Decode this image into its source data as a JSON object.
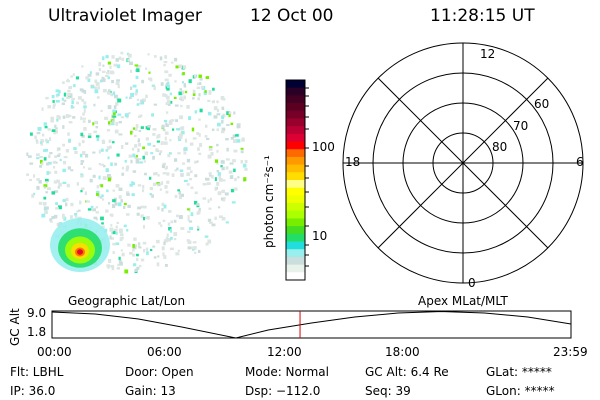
{
  "header": {
    "instrument": "Ultraviolet Imager",
    "date": "12 Oct 00",
    "time": "11:28:15 UT"
  },
  "colorbar": {
    "label": "photon cm⁻²s⁻¹",
    "ticks": [
      "100",
      "10"
    ],
    "colors": [
      "#000033",
      "#2a0026",
      "#440022",
      "#5c0022",
      "#770028",
      "#99002e",
      "#bb0033",
      "#dd0033",
      "#ff0000",
      "#ff6a00",
      "#ff9900",
      "#ffbb00",
      "#ffdd00",
      "#ffff88",
      "#ffff00",
      "#eeff00",
      "#ccff00",
      "#aaff00",
      "#77ee00",
      "#44dd22",
      "#22dd66",
      "#22dddd",
      "#99eeee",
      "#ccdddd",
      "#e8f2ea",
      "#ffffff"
    ]
  },
  "polar": {
    "mlt_labels": {
      "top": "12",
      "left": "18",
      "right": "6",
      "bottom": "0"
    },
    "lat_labels": [
      "60",
      "70",
      "80"
    ]
  },
  "timeline": {
    "left_label": "Geographic Lat/Lon",
    "right_label": "Apex MLat/MLT",
    "y_label": "GC Alt",
    "y_max": "9.0",
    "y_min": "1.8",
    "x_ticks": [
      "00:00",
      "06:00",
      "12:00",
      "18:00",
      "23:59"
    ],
    "current_time_hours": 11.47,
    "marker_color": "#dd0000"
  },
  "status": {
    "row1": [
      "Flt: LBHL",
      "Door: Open",
      "Mode: Normal",
      "GC Alt: 6.4 Re",
      "GLat: *****"
    ],
    "row2": [
      "IP: 36.0",
      "Gain: 13",
      "Dsp: −112.0",
      "Seq: 39",
      "GLon: *****"
    ]
  }
}
